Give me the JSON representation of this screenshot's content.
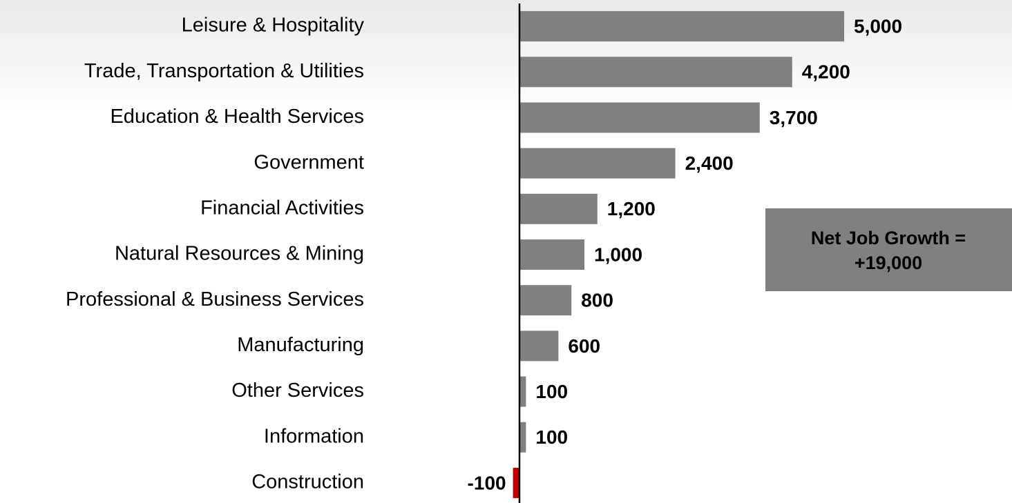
{
  "chart_data": {
    "type": "bar",
    "orientation": "horizontal",
    "categories": [
      "Leisure & Hospitality",
      "Trade, Transportation & Utilities",
      "Education & Health Services",
      "Government",
      "Financial Activities",
      "Natural Resources & Mining",
      "Professional & Business Services",
      "Manufacturing",
      "Other Services",
      "Information",
      "Construction"
    ],
    "values": [
      5000,
      4200,
      3700,
      2400,
      1200,
      1000,
      800,
      600,
      100,
      100,
      -100
    ],
    "value_labels": [
      "5,000",
      "4,200",
      "3,700",
      "2,400",
      "1,200",
      "1,000",
      "800",
      "600",
      "100",
      "100",
      "-100"
    ],
    "color": "#808080",
    "negative_color": "#c00000",
    "xlim": [
      -1000,
      7000
    ],
    "annotation": {
      "lines": [
        "Net Job Growth =",
        "+19,000"
      ],
      "color": "#808080"
    }
  }
}
